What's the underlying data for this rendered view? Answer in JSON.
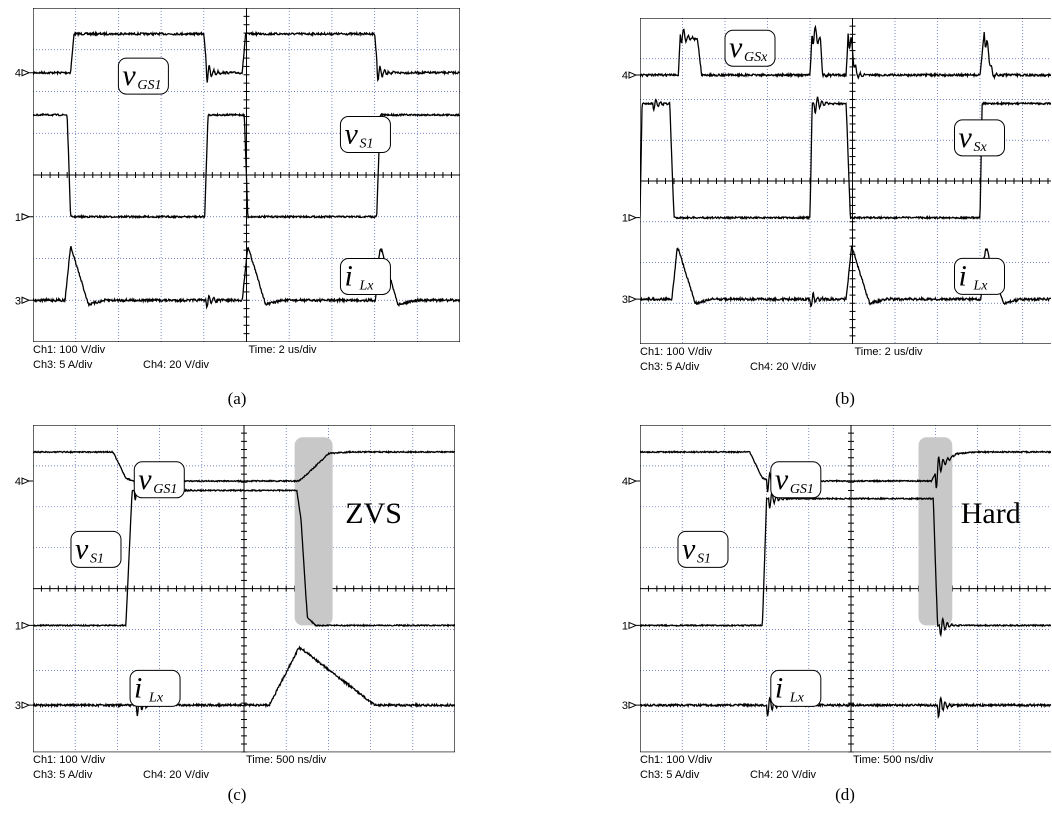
{
  "panels": [
    {
      "caption": "(a)",
      "channel_markers": [
        "4",
        "1",
        "3"
      ],
      "labels": [
        {
          "main": "v",
          "sub": "GS1"
        },
        {
          "main": "v",
          "sub": "S1"
        },
        {
          "main": "i",
          "sub": "Lx"
        }
      ],
      "scales": {
        "ch1": "Ch1: 100 V/div",
        "ch3": "Ch3: 5 A/div",
        "ch4": "Ch4: 20 V/div",
        "time": "Time: 2 us/div"
      }
    },
    {
      "caption": "(b)",
      "channel_markers": [
        "4",
        "1",
        "3"
      ],
      "labels": [
        {
          "main": "v",
          "sub": "GSx"
        },
        {
          "main": "v",
          "sub": "Sx"
        },
        {
          "main": "i",
          "sub": "Lx"
        }
      ],
      "scales": {
        "ch1": "Ch1: 100 V/div",
        "ch3": "Ch3: 5 A/div",
        "ch4": "Ch4: 20 V/div",
        "time": "Time: 2 us/div"
      }
    },
    {
      "caption": "(c)",
      "channel_markers": [
        "4",
        "1",
        "3"
      ],
      "labels": [
        {
          "main": "v",
          "sub": "GS1"
        },
        {
          "main": "v",
          "sub": "S1"
        },
        {
          "main": "i",
          "sub": "Lx"
        }
      ],
      "scales": {
        "ch1": "Ch1: 100 V/div",
        "ch3": "Ch3: 5 A/div",
        "ch4": "Ch4: 20 V/div",
        "time": "Time: 500 ns/div"
      },
      "annotation": "ZVS"
    },
    {
      "caption": "(d)",
      "channel_markers": [
        "4",
        "1",
        "3"
      ],
      "labels": [
        {
          "main": "v",
          "sub": "GS1"
        },
        {
          "main": "v",
          "sub": "S1"
        },
        {
          "main": "i",
          "sub": "Lx"
        }
      ],
      "scales": {
        "ch1": "Ch1: 100 V/div",
        "ch3": "Ch3: 5 A/div",
        "ch4": "Ch4: 20 V/div",
        "time": "Time: 500 ns/div"
      },
      "annotation": "Hard"
    }
  ]
}
